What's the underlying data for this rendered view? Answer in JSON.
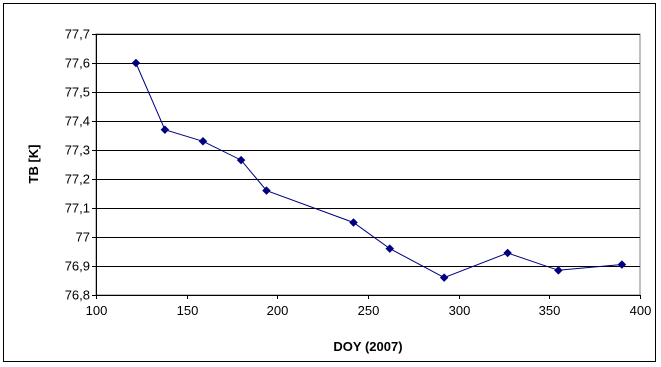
{
  "chart_data": {
    "type": "line",
    "title": "",
    "xlabel": "DOY (2007)",
    "ylabel": "TB [K]",
    "xlim": [
      100,
      400
    ],
    "ylim": [
      76.8,
      77.7
    ],
    "x_ticks": [
      "100",
      "150",
      "200",
      "250",
      "300",
      "350",
      "400"
    ],
    "x_tick_values": [
      100,
      150,
      200,
      250,
      300,
      350,
      400
    ],
    "y_ticks": [
      "76,8",
      "76,9",
      "77",
      "77,1",
      "77,2",
      "77,3",
      "77,4",
      "77,5",
      "77,6",
      "77,7"
    ],
    "y_tick_values": [
      76.8,
      76.9,
      77.0,
      77.1,
      77.2,
      77.3,
      77.4,
      77.5,
      77.6,
      77.7
    ],
    "grid": "horizontal",
    "legend": "none",
    "series": [
      {
        "color": "#000080",
        "marker": "diamond",
        "x": [
          122,
          138,
          159,
          180,
          194,
          242,
          262,
          292,
          327,
          355,
          390
        ],
        "y": [
          77.6,
          77.37,
          77.33,
          77.265,
          77.16,
          77.05,
          76.96,
          76.86,
          76.945,
          76.885,
          76.905
        ]
      }
    ]
  }
}
